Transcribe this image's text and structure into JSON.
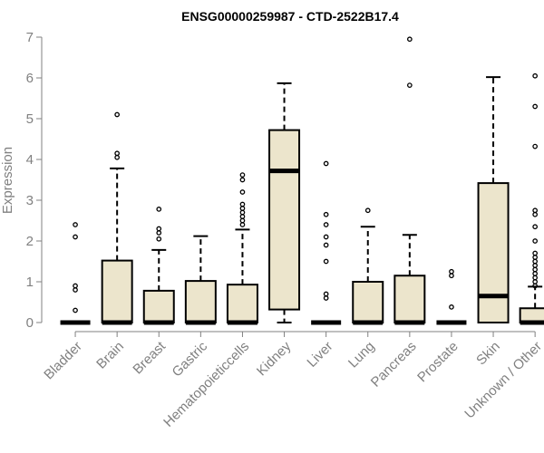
{
  "chart_data": {
    "type": "box",
    "title": "ENSG00000259987 - CTD-2522B17.4",
    "xlabel": "",
    "ylabel": "Expression",
    "ylim": [
      0,
      7
    ],
    "yticks": [
      "0",
      "1",
      "2",
      "3",
      "4",
      "5",
      "6",
      "7"
    ],
    "categories": [
      "Bladder",
      "Brain",
      "Breast",
      "Gastric",
      "Hematopoieticcells",
      "Kidney",
      "Liver",
      "Lung",
      "Pancreas",
      "Prostate",
      "Skin",
      "Unknown / Other"
    ],
    "boxes": [
      {
        "category": "Bladder",
        "q1": 0,
        "median": 0,
        "q3": 0,
        "whisker_low": 0,
        "whisker_high": 0,
        "outliers": [
          0.3,
          0.8,
          0.9,
          2.1,
          2.4
        ]
      },
      {
        "category": "Brain",
        "q1": 0,
        "median": 0,
        "q3": 1.52,
        "whisker_low": 0,
        "whisker_high": 3.78,
        "outliers": [
          4.05,
          4.15,
          5.1
        ]
      },
      {
        "category": "Breast",
        "q1": 0,
        "median": 0,
        "q3": 0.78,
        "whisker_low": 0,
        "whisker_high": 1.78,
        "outliers": [
          2.05,
          2.2,
          2.3,
          2.78
        ]
      },
      {
        "category": "Gastric",
        "q1": 0,
        "median": 0,
        "q3": 1.02,
        "whisker_low": 0,
        "whisker_high": 2.12,
        "outliers": []
      },
      {
        "category": "Hematopoieticcells",
        "q1": 0,
        "median": 0,
        "q3": 0.93,
        "whisker_low": 0,
        "whisker_high": 2.28,
        "outliers": [
          2.4,
          2.5,
          2.6,
          2.7,
          2.8,
          2.9,
          3.2,
          3.5,
          3.62
        ]
      },
      {
        "category": "Kidney",
        "q1": 0.32,
        "median": 3.72,
        "q3": 4.72,
        "whisker_low": 0,
        "whisker_high": 5.87,
        "outliers": []
      },
      {
        "category": "Liver",
        "q1": 0,
        "median": 0,
        "q3": 0,
        "whisker_low": 0,
        "whisker_high": 0,
        "outliers": [
          0.6,
          0.7,
          1.5,
          1.9,
          2.1,
          2.4,
          2.65,
          3.9
        ]
      },
      {
        "category": "Lung",
        "q1": 0,
        "median": 0,
        "q3": 1.0,
        "whisker_low": 0,
        "whisker_high": 2.35,
        "outliers": [
          2.75
        ]
      },
      {
        "category": "Pancreas",
        "q1": 0,
        "median": 0,
        "q3": 1.15,
        "whisker_low": 0,
        "whisker_high": 2.15,
        "outliers": [
          5.82,
          6.95
        ]
      },
      {
        "category": "Prostate",
        "q1": 0,
        "median": 0,
        "q3": 0,
        "whisker_low": 0,
        "whisker_high": 0,
        "outliers": [
          0.38,
          1.15,
          1.25
        ]
      },
      {
        "category": "Skin",
        "q1": 0,
        "median": 0.65,
        "q3": 3.42,
        "whisker_low": 0,
        "whisker_high": 6.02,
        "outliers": []
      },
      {
        "category": "Unknown / Other",
        "q1": 0,
        "median": 0,
        "q3": 0.35,
        "whisker_low": 0,
        "whisker_high": 0.88,
        "outliers": [
          0.9,
          1.0,
          1.1,
          1.2,
          1.3,
          1.4,
          1.5,
          1.6,
          1.7,
          2.0,
          2.35,
          2.65,
          2.75,
          4.32,
          5.3,
          6.05
        ]
      }
    ],
    "colors": {
      "box_fill": "#ece5cc",
      "stroke": "#000000",
      "axis": "#808080",
      "text": "#808080",
      "title": "#000000"
    },
    "grid": false,
    "legend": "none"
  }
}
